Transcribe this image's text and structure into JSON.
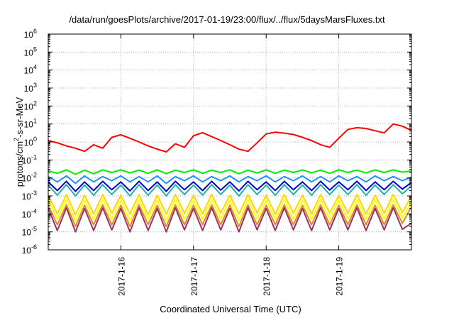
{
  "chart_data": {
    "type": "line",
    "title": "/data/run/goesPlots/archive/2017-01-19/23:00/flux/../flux/5daysMarsFluxes.txt",
    "xlabel": "Coordinated Universal Time (UTC)",
    "ylabel": {
      "base": "protons/cm",
      "exp": "2",
      "tail": "-s-sr-MeV"
    },
    "yscale": "log",
    "ylim": [
      1e-06,
      1000000.0
    ],
    "y_ticks": [
      {
        "base": "10",
        "exp": "-6",
        "value": 1e-06
      },
      {
        "base": "10",
        "exp": "-5",
        "value": 1e-05
      },
      {
        "base": "10",
        "exp": "-4",
        "value": 0.0001
      },
      {
        "base": "10",
        "exp": "-3",
        "value": 0.001
      },
      {
        "base": "10",
        "exp": "-2",
        "value": 0.01
      },
      {
        "base": "10",
        "exp": "-1",
        "value": 0.1
      },
      {
        "base": "10",
        "exp": "0",
        "value": 1
      },
      {
        "base": "10",
        "exp": "1",
        "value": 10
      },
      {
        "base": "10",
        "exp": "2",
        "value": 100
      },
      {
        "base": "10",
        "exp": "3",
        "value": 1000
      },
      {
        "base": "10",
        "exp": "4",
        "value": 10000
      },
      {
        "base": "10",
        "exp": "5",
        "value": 100000
      },
      {
        "base": "10",
        "exp": "6",
        "value": 1000000
      }
    ],
    "xlim": [
      "2017-01-15 00:00",
      "2017-01-20 00:00"
    ],
    "x_ticks": [
      {
        "label": "2017-1-16",
        "value": "2017-01-16 00:00"
      },
      {
        "label": "2017-1-17",
        "value": "2017-01-17 00:00"
      },
      {
        "label": "2017-1-18",
        "value": "2017-01-18 00:00"
      },
      {
        "label": "2017-1-19",
        "value": "2017-01-19 00:00"
      }
    ],
    "grid": true,
    "x": [
      "2017-01-15 00:00",
      "2017-01-15 03:00",
      "2017-01-15 06:00",
      "2017-01-15 09:00",
      "2017-01-15 12:00",
      "2017-01-15 15:00",
      "2017-01-15 18:00",
      "2017-01-15 21:00",
      "2017-01-16 00:00",
      "2017-01-16 03:00",
      "2017-01-16 06:00",
      "2017-01-16 09:00",
      "2017-01-16 12:00",
      "2017-01-16 15:00",
      "2017-01-16 18:00",
      "2017-01-16 21:00",
      "2017-01-17 00:00",
      "2017-01-17 03:00",
      "2017-01-17 06:00",
      "2017-01-17 09:00",
      "2017-01-17 12:00",
      "2017-01-17 15:00",
      "2017-01-17 18:00",
      "2017-01-17 21:00",
      "2017-01-18 00:00",
      "2017-01-18 03:00",
      "2017-01-18 06:00",
      "2017-01-18 09:00",
      "2017-01-18 12:00",
      "2017-01-18 15:00",
      "2017-01-18 18:00",
      "2017-01-18 21:00",
      "2017-01-19 00:00",
      "2017-01-19 03:00",
      "2017-01-19 06:00",
      "2017-01-19 09:00",
      "2017-01-19 12:00",
      "2017-01-19 15:00",
      "2017-01-19 18:00",
      "2017-01-19 21:00",
      "2017-01-20 00:00"
    ],
    "series": [
      {
        "color": "#ff0000",
        "values": [
          1.2,
          0.9,
          0.6,
          0.45,
          0.3,
          0.7,
          0.45,
          1.8,
          2.5,
          1.6,
          1.0,
          0.6,
          0.4,
          0.28,
          0.8,
          0.5,
          2.2,
          3.3,
          2.0,
          1.2,
          0.7,
          0.4,
          0.3,
          0.9,
          2.8,
          3.5,
          3.1,
          2.6,
          1.8,
          1.2,
          0.7,
          0.5,
          1.6,
          5.0,
          6.2,
          5.6,
          4.2,
          3.2,
          10,
          7.5,
          4.4
        ]
      },
      {
        "color": "#00ee00",
        "values": [
          0.025,
          0.018,
          0.028,
          0.016,
          0.027,
          0.017,
          0.028,
          0.02,
          0.028,
          0.019,
          0.027,
          0.018,
          0.028,
          0.017,
          0.027,
          0.02,
          0.028,
          0.018,
          0.027,
          0.02,
          0.028,
          0.017,
          0.027,
          0.019,
          0.028,
          0.018,
          0.027,
          0.02,
          0.028,
          0.019,
          0.027,
          0.018,
          0.028,
          0.02,
          0.027,
          0.019,
          0.028,
          0.02,
          0.028,
          0.021,
          0.024
        ]
      },
      {
        "color": "#1e90ff",
        "values": [
          0.012,
          0.006,
          0.013,
          0.005,
          0.013,
          0.006,
          0.012,
          0.007,
          0.013,
          0.006,
          0.012,
          0.006,
          0.013,
          0.005,
          0.012,
          0.007,
          0.013,
          0.006,
          0.012,
          0.007,
          0.013,
          0.006,
          0.012,
          0.007,
          0.013,
          0.006,
          0.012,
          0.007,
          0.013,
          0.006,
          0.012,
          0.006,
          0.013,
          0.007,
          0.012,
          0.006,
          0.013,
          0.007,
          0.012,
          0.007,
          0.011
        ]
      },
      {
        "color": "#0000cd",
        "values": [
          0.006,
          0.002,
          0.0065,
          0.0018,
          0.006,
          0.002,
          0.0065,
          0.0022,
          0.006,
          0.0019,
          0.0065,
          0.002,
          0.006,
          0.0018,
          0.0065,
          0.0022,
          0.006,
          0.002,
          0.0065,
          0.0021,
          0.006,
          0.0019,
          0.0065,
          0.0022,
          0.006,
          0.002,
          0.0065,
          0.0022,
          0.006,
          0.002,
          0.0065,
          0.0021,
          0.006,
          0.0022,
          0.0065,
          0.002,
          0.006,
          0.0022,
          0.0065,
          0.0024,
          0.0055
        ]
      },
      {
        "color": "#20b2aa",
        "values": [
          0.004,
          0.0011,
          0.0042,
          0.001,
          0.004,
          0.0011,
          0.0042,
          0.0012,
          0.004,
          0.001,
          0.0042,
          0.0011,
          0.004,
          0.001,
          0.0042,
          0.0012,
          0.004,
          0.0011,
          0.0042,
          0.0012,
          0.004,
          0.001,
          0.0042,
          0.0012,
          0.004,
          0.0011,
          0.0042,
          0.0012,
          0.004,
          0.0011,
          0.0042,
          0.0012,
          0.004,
          0.0012,
          0.0042,
          0.0011,
          0.004,
          0.0012,
          0.0042,
          0.0013,
          0.0036
        ]
      },
      {
        "color": "#ffd700",
        "values": [
          0.0011,
          0.0001,
          0.0012,
          9e-05,
          0.0011,
          0.0001,
          0.0012,
          0.00011,
          0.0011,
          0.0001,
          0.0012,
          9e-05,
          0.0011,
          0.0001,
          0.0012,
          0.00011,
          0.0011,
          0.0001,
          0.0012,
          0.00011,
          0.0011,
          0.0001,
          0.0012,
          0.00011,
          0.0011,
          0.0001,
          0.0012,
          0.00011,
          0.0011,
          0.0001,
          0.0012,
          0.00011,
          0.0011,
          0.00011,
          0.0012,
          0.0001,
          0.0011,
          0.00011,
          0.0012,
          0.00012,
          0.001
        ]
      },
      {
        "color": "#ffff00",
        "values": [
          0.0006,
          5e-05,
          0.00065,
          4e-05,
          0.0006,
          5e-05,
          0.00065,
          5e-05,
          0.0006,
          4e-05,
          0.00065,
          5e-05,
          0.0006,
          4e-05,
          0.00065,
          5e-05,
          0.0006,
          5e-05,
          0.00065,
          5e-05,
          0.0006,
          4e-05,
          0.00065,
          5e-05,
          0.0006,
          5e-05,
          0.00065,
          5e-05,
          0.0006,
          5e-05,
          0.00065,
          5e-05,
          0.0006,
          5e-05,
          0.00065,
          5e-05,
          0.0006,
          5e-05,
          0.00065,
          6e-05,
          0.0005
        ]
      },
      {
        "color": "#e08a2a",
        "values": [
          0.0003,
          2.5e-05,
          0.00032,
          2e-05,
          0.0003,
          2.5e-05,
          0.00032,
          2.5e-05,
          0.0003,
          2e-05,
          0.00032,
          2.5e-05,
          0.0003,
          2e-05,
          0.00032,
          2.5e-05,
          0.0003,
          2.5e-05,
          0.00032,
          2.5e-05,
          0.0003,
          2e-05,
          0.00032,
          2.5e-05,
          0.0003,
          2.5e-05,
          0.00032,
          2.5e-05,
          0.0003,
          2.5e-05,
          0.00032,
          2.5e-05,
          0.0003,
          2.5e-05,
          0.00032,
          2.5e-05,
          0.0003,
          2.5e-05,
          0.00032,
          3e-05,
          0.00025
        ]
      },
      {
        "color": "#993366",
        "values": [
          0.0002,
          1.2e-05,
          0.00022,
          1e-05,
          0.0002,
          1.2e-05,
          0.00022,
          1.3e-05,
          0.0002,
          1e-05,
          0.00022,
          1.2e-05,
          0.0002,
          1e-05,
          0.00022,
          1.3e-05,
          0.0002,
          1.2e-05,
          0.00022,
          1.3e-05,
          0.0002,
          1e-05,
          0.00022,
          1.3e-05,
          0.0002,
          1.2e-05,
          0.00022,
          1.3e-05,
          0.0002,
          1.2e-05,
          0.00022,
          1.3e-05,
          0.0002,
          1.3e-05,
          0.00022,
          1.2e-05,
          0.0002,
          1.3e-05,
          0.00022,
          1.4e-05,
          3e-05
        ]
      }
    ]
  }
}
